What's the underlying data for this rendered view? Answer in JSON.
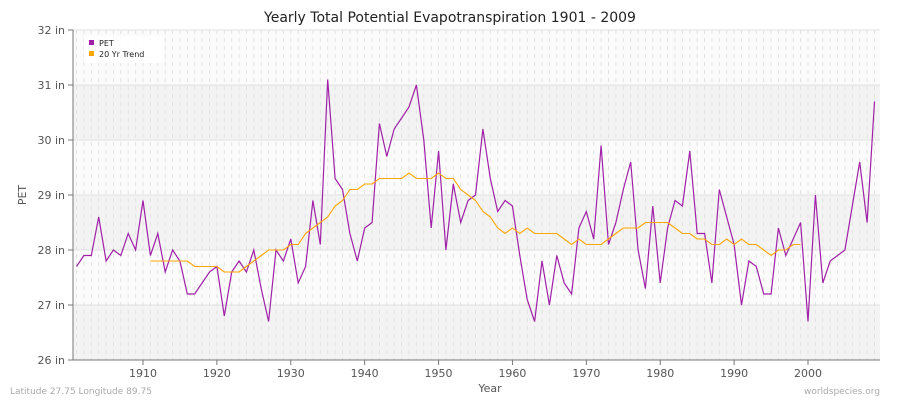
{
  "chart_data": {
    "type": "line",
    "title": "Yearly Total Potential Evapotranspiration 1901 - 2009",
    "xlabel": "Year",
    "ylabel": "PET",
    "xlim": [
      1901,
      2009
    ],
    "ylim": [
      26,
      32
    ],
    "y_ticks": [
      "26 in",
      "27 in",
      "28 in",
      "29 in",
      "30 in",
      "31 in",
      "32 in"
    ],
    "y_tick_values": [
      26,
      27,
      28,
      29,
      30,
      31,
      32
    ],
    "x_ticks": [
      "1910",
      "1920",
      "1930",
      "1940",
      "1950",
      "1960",
      "1970",
      "1980",
      "1990",
      "2000"
    ],
    "x_tick_values": [
      1910,
      1920,
      1930,
      1940,
      1950,
      1960,
      1970,
      1980,
      1990,
      2000
    ],
    "grid": true,
    "legend_position": "top-left",
    "series": [
      {
        "name": "PET",
        "color": "#a020a8",
        "x_start": 1901,
        "values": [
          27.7,
          27.9,
          27.9,
          28.6,
          27.8,
          28.0,
          27.9,
          28.3,
          28.0,
          28.9,
          27.9,
          28.3,
          27.6,
          28.0,
          27.8,
          27.2,
          27.2,
          27.4,
          27.6,
          27.7,
          26.8,
          27.6,
          27.8,
          27.6,
          28.0,
          27.3,
          26.7,
          28.0,
          27.8,
          28.2,
          27.4,
          27.7,
          28.9,
          28.1,
          31.1,
          29.3,
          29.1,
          28.3,
          27.8,
          28.4,
          28.5,
          30.3,
          29.7,
          30.2,
          30.4,
          30.6,
          31.0,
          30.0,
          28.4,
          29.8,
          28.0,
          29.2,
          28.5,
          28.9,
          29.0,
          30.2,
          29.3,
          28.7,
          28.9,
          28.8,
          27.9,
          27.1,
          26.7,
          27.8,
          27.0,
          27.9,
          27.4,
          27.2,
          28.4,
          28.7,
          28.2,
          29.9,
          28.1,
          28.5,
          29.1,
          29.6,
          28.0,
          27.3,
          28.8,
          27.4,
          28.4,
          28.9,
          28.8,
          29.8,
          28.3,
          28.3,
          27.4,
          29.1,
          28.6,
          28.1,
          27.0,
          27.8,
          27.7,
          27.2,
          27.2,
          28.4,
          27.9,
          28.2,
          28.5,
          26.7,
          29.0,
          27.4,
          27.8,
          27.9,
          28.0,
          28.8,
          29.6,
          28.5,
          30.7
        ]
      },
      {
        "name": "20 Yr Trend",
        "color": "#ffa500",
        "x_start": 1911,
        "values": [
          27.8,
          27.8,
          27.8,
          27.8,
          27.8,
          27.8,
          27.7,
          27.7,
          27.7,
          27.7,
          27.6,
          27.6,
          27.6,
          27.7,
          27.8,
          27.9,
          28.0,
          28.0,
          28.0,
          28.1,
          28.1,
          28.3,
          28.4,
          28.5,
          28.6,
          28.8,
          28.9,
          29.1,
          29.1,
          29.2,
          29.2,
          29.3,
          29.3,
          29.3,
          29.3,
          29.4,
          29.3,
          29.3,
          29.3,
          29.4,
          29.3,
          29.3,
          29.1,
          29.0,
          28.9,
          28.7,
          28.6,
          28.4,
          28.3,
          28.4,
          28.3,
          28.4,
          28.3,
          28.3,
          28.3,
          28.3,
          28.2,
          28.1,
          28.2,
          28.1,
          28.1,
          28.1,
          28.2,
          28.3,
          28.4,
          28.4,
          28.4,
          28.5,
          28.5,
          28.5,
          28.5,
          28.4,
          28.3,
          28.3,
          28.2,
          28.2,
          28.1,
          28.1,
          28.2,
          28.1,
          28.2,
          28.1,
          28.1,
          28.0,
          27.9,
          28.0,
          28.0,
          28.1,
          28.1
        ]
      }
    ]
  },
  "footer": {
    "location": "Latitude 27.75 Longitude 89.75",
    "source": "worldspecies.org"
  }
}
